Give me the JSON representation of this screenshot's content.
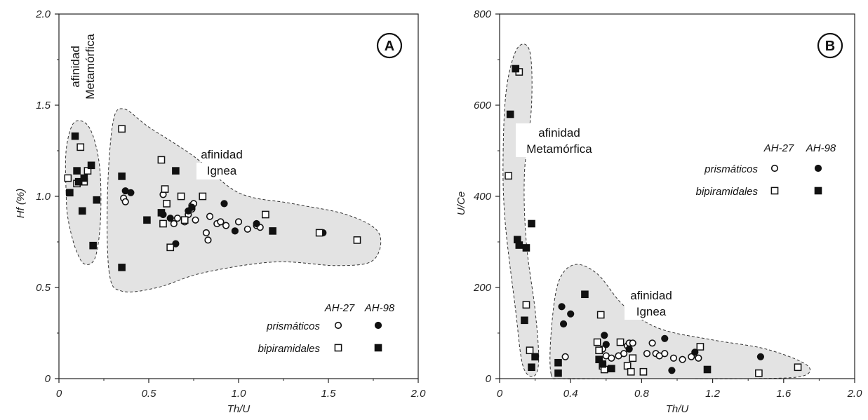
{
  "chart_data": [
    {
      "type": "scatter",
      "panel": "A",
      "xlabel": "Th/U",
      "ylabel": "Hf (%)",
      "xlim": [
        0,
        2.0
      ],
      "ylim": [
        0,
        2.0
      ],
      "x_ticks": [
        "0",
        "0.5",
        "1.0",
        "1.5",
        "2.0"
      ],
      "y_ticks": [
        "0",
        "0.5",
        "1.0",
        "1.5",
        "2.0"
      ],
      "legend": {
        "header_open": "AH-27",
        "header_filled": "AH-98",
        "row1": "prismáticos",
        "row2": "bipiramidales",
        "placement": "bottom-right"
      },
      "regions": [
        {
          "name": "metamorphic",
          "label": [
            "afinidad",
            "Metamórfica"
          ],
          "outline": [
            [
              0.04,
              1.02
            ],
            [
              0.04,
              1.25
            ],
            [
              0.08,
              1.4
            ],
            [
              0.15,
              1.4
            ],
            [
              0.2,
              1.3
            ],
            [
              0.23,
              1.12
            ],
            [
              0.23,
              0.85
            ],
            [
              0.2,
              0.66
            ],
            [
              0.14,
              0.63
            ],
            [
              0.09,
              0.72
            ],
            [
              0.05,
              0.88
            ]
          ]
        },
        {
          "name": "igneous",
          "label": [
            "afinidad",
            "Ignea"
          ],
          "outline": [
            [
              0.28,
              0.58
            ],
            [
              0.27,
              1.0
            ],
            [
              0.3,
              1.4
            ],
            [
              0.36,
              1.48
            ],
            [
              0.5,
              1.38
            ],
            [
              0.75,
              1.22
            ],
            [
              1.0,
              1.02
            ],
            [
              1.3,
              0.96
            ],
            [
              1.6,
              0.9
            ],
            [
              1.78,
              0.8
            ],
            [
              1.75,
              0.65
            ],
            [
              1.55,
              0.62
            ],
            [
              1.2,
              0.64
            ],
            [
              0.8,
              0.58
            ],
            [
              0.55,
              0.5
            ],
            [
              0.35,
              0.48
            ]
          ]
        }
      ],
      "series": [
        {
          "name": "AH-27 prismáticos",
          "marker": "open-circle",
          "points": [
            [
              0.36,
              0.99
            ],
            [
              0.37,
              0.97
            ],
            [
              0.58,
              1.01
            ],
            [
              0.64,
              0.85
            ],
            [
              0.66,
              0.88
            ],
            [
              0.7,
              0.86
            ],
            [
              0.72,
              0.9
            ],
            [
              0.74,
              0.93
            ],
            [
              0.74,
              0.95
            ],
            [
              0.75,
              0.96
            ],
            [
              0.76,
              0.87
            ],
            [
              0.82,
              0.8
            ],
            [
              0.83,
              0.76
            ],
            [
              0.84,
              0.89
            ],
            [
              0.88,
              0.85
            ],
            [
              0.9,
              0.86
            ],
            [
              0.93,
              0.84
            ],
            [
              1.0,
              0.86
            ],
            [
              1.05,
              0.82
            ],
            [
              1.1,
              0.84
            ],
            [
              1.12,
              0.83
            ]
          ]
        },
        {
          "name": "AH-98 prismáticos",
          "marker": "filled-circle",
          "points": [
            [
              0.37,
              1.03
            ],
            [
              0.4,
              1.02
            ],
            [
              0.58,
              0.9
            ],
            [
              0.62,
              0.88
            ],
            [
              0.65,
              0.74
            ],
            [
              0.72,
              0.92
            ],
            [
              0.74,
              0.94
            ],
            [
              0.92,
              0.96
            ],
            [
              0.98,
              0.81
            ],
            [
              1.1,
              0.85
            ],
            [
              1.47,
              0.8
            ]
          ]
        },
        {
          "name": "AH-27 bipiramidales",
          "marker": "open-square",
          "points": [
            [
              0.05,
              1.1
            ],
            [
              0.1,
              1.07
            ],
            [
              0.12,
              1.27
            ],
            [
              0.14,
              1.08
            ],
            [
              0.16,
              1.14
            ],
            [
              0.35,
              1.37
            ],
            [
              0.57,
              1.2
            ],
            [
              0.58,
              0.85
            ],
            [
              0.59,
              1.04
            ],
            [
              0.6,
              0.96
            ],
            [
              0.62,
              0.72
            ],
            [
              0.68,
              1.0
            ],
            [
              0.7,
              0.87
            ],
            [
              0.8,
              1.0
            ],
            [
              1.15,
              0.9
            ],
            [
              1.45,
              0.8
            ],
            [
              1.66,
              0.76
            ]
          ]
        },
        {
          "name": "AH-98 bipiramidales",
          "marker": "filled-square",
          "points": [
            [
              0.06,
              1.02
            ],
            [
              0.09,
              1.33
            ],
            [
              0.1,
              1.14
            ],
            [
              0.11,
              1.08
            ],
            [
              0.13,
              0.92
            ],
            [
              0.14,
              1.1
            ],
            [
              0.18,
              1.17
            ],
            [
              0.19,
              0.73
            ],
            [
              0.21,
              0.98
            ],
            [
              0.35,
              1.11
            ],
            [
              0.35,
              0.61
            ],
            [
              0.49,
              0.87
            ],
            [
              0.57,
              0.91
            ],
            [
              0.65,
              1.14
            ],
            [
              1.19,
              0.81
            ]
          ]
        }
      ]
    },
    {
      "type": "scatter",
      "panel": "B",
      "xlabel": "Th/U",
      "ylabel": "U/Ce",
      "xlim": [
        0,
        2.0
      ],
      "ylim": [
        0,
        800
      ],
      "x_ticks": [
        "0",
        "0.4",
        "0.8",
        "1.2",
        "1.6",
        "2.0"
      ],
      "y_ticks": [
        "0",
        "200",
        "400",
        "600",
        "800"
      ],
      "legend": {
        "header_open": "AH-27",
        "header_filled": "AH-98",
        "row1": "prismáticos",
        "row2": "bipiramidales",
        "placement": "top-right"
      },
      "regions": [
        {
          "name": "metamorphic",
          "label": [
            "afinidad",
            "Metamórfica"
          ],
          "outline": [
            [
              0.02,
              500
            ],
            [
              0.04,
              640
            ],
            [
              0.1,
              725
            ],
            [
              0.17,
              718
            ],
            [
              0.18,
              600
            ],
            [
              0.14,
              450
            ],
            [
              0.15,
              300
            ],
            [
              0.2,
              150
            ],
            [
              0.22,
              40
            ],
            [
              0.19,
              5
            ],
            [
              0.13,
              30
            ],
            [
              0.09,
              150
            ],
            [
              0.03,
              350
            ]
          ]
        },
        {
          "name": "igneous",
          "label": [
            "afinidad",
            "Ignea"
          ],
          "outline": [
            [
              0.29,
              10
            ],
            [
              0.29,
              100
            ],
            [
              0.33,
              210
            ],
            [
              0.42,
              250
            ],
            [
              0.55,
              230
            ],
            [
              0.7,
              160
            ],
            [
              0.9,
              110
            ],
            [
              1.2,
              85
            ],
            [
              1.5,
              65
            ],
            [
              1.73,
              30
            ],
            [
              1.7,
              5
            ],
            [
              1.4,
              0
            ],
            [
              1.0,
              0
            ],
            [
              0.6,
              0
            ],
            [
              0.35,
              0
            ]
          ]
        }
      ],
      "series": [
        {
          "name": "AH-27 prismáticos",
          "marker": "open-circle",
          "points": [
            [
              0.37,
              48
            ],
            [
              0.58,
              65
            ],
            [
              0.6,
              50
            ],
            [
              0.63,
              45
            ],
            [
              0.67,
              50
            ],
            [
              0.7,
              55
            ],
            [
              0.72,
              72
            ],
            [
              0.73,
              78
            ],
            [
              0.75,
              78
            ],
            [
              0.83,
              55
            ],
            [
              0.86,
              78
            ],
            [
              0.88,
              55
            ],
            [
              0.9,
              50
            ],
            [
              0.93,
              55
            ],
            [
              0.98,
              45
            ],
            [
              1.03,
              42
            ],
            [
              1.08,
              48
            ],
            [
              1.12,
              45
            ]
          ]
        },
        {
          "name": "AH-98 prismáticos",
          "marker": "filled-circle",
          "points": [
            [
              0.35,
              158
            ],
            [
              0.36,
              120
            ],
            [
              0.4,
              142
            ],
            [
              0.59,
              95
            ],
            [
              0.6,
              75
            ],
            [
              0.73,
              65
            ],
            [
              0.93,
              88
            ],
            [
              0.97,
              18
            ],
            [
              1.1,
              58
            ],
            [
              1.47,
              48
            ]
          ]
        },
        {
          "name": "AH-27 bipiramidales",
          "marker": "open-square",
          "points": [
            [
              0.05,
              445
            ],
            [
              0.11,
              673
            ],
            [
              0.15,
              162
            ],
            [
              0.17,
              62
            ],
            [
              0.55,
              80
            ],
            [
              0.56,
              62
            ],
            [
              0.57,
              140
            ],
            [
              0.58,
              28
            ],
            [
              0.59,
              20
            ],
            [
              0.68,
              80
            ],
            [
              0.72,
              28
            ],
            [
              0.74,
              15
            ],
            [
              0.75,
              45
            ],
            [
              0.81,
              15
            ],
            [
              1.13,
              70
            ],
            [
              1.46,
              12
            ],
            [
              1.68,
              25
            ]
          ]
        },
        {
          "name": "AH-98 bipiramidales",
          "marker": "filled-square",
          "points": [
            [
              0.06,
              580
            ],
            [
              0.09,
              680
            ],
            [
              0.1,
              305
            ],
            [
              0.11,
              293
            ],
            [
              0.14,
              128
            ],
            [
              0.15,
              287
            ],
            [
              0.18,
              340
            ],
            [
              0.18,
              25
            ],
            [
              0.2,
              48
            ],
            [
              0.33,
              35
            ],
            [
              0.33,
              12
            ],
            [
              0.48,
              185
            ],
            [
              0.56,
              42
            ],
            [
              0.58,
              32
            ],
            [
              0.63,
              22
            ],
            [
              1.17,
              20
            ]
          ]
        }
      ]
    }
  ]
}
